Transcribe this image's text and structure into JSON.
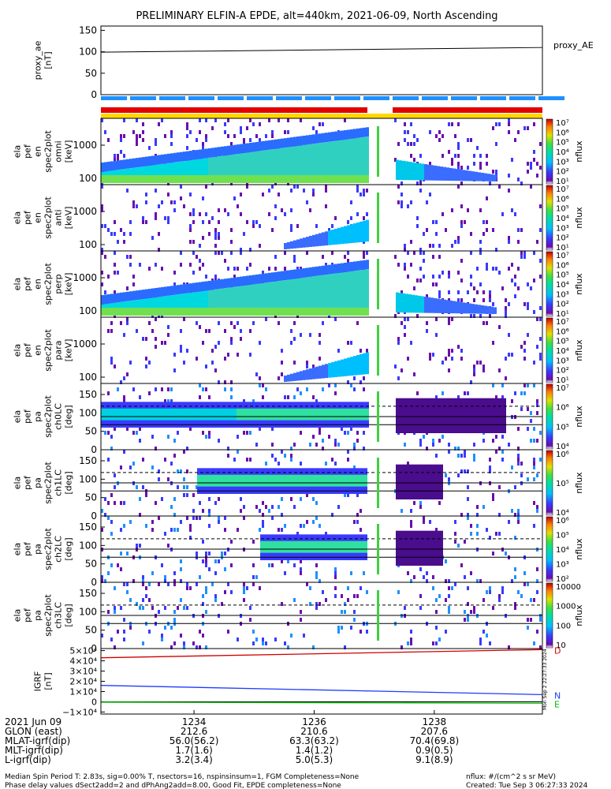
{
  "title": "PRELIMINARY ELFIN-A EPDE, alt=440km, 2021-06-09, North Ascending",
  "chart_data": [
    {
      "type": "line",
      "name": "proxy_ae",
      "ylabel": [
        "proxy_ae",
        "[nT]"
      ],
      "yticks": [
        "150",
        "100",
        "50",
        "0"
      ],
      "ylim": [
        0,
        160
      ],
      "legend": "proxy_AE",
      "x": [
        1232.45,
        1239.8
      ],
      "values": [
        99,
        110
      ]
    },
    {
      "type": "heatmap",
      "name": "pef_en_spec2plot_omni",
      "ylabel": [
        "ela",
        "pef",
        "en",
        "spec2plot",
        "omni",
        "[keV]"
      ],
      "yticks": [
        "1000",
        "100"
      ],
      "scale": "log",
      "colorbar_ticks": [
        "10⁷",
        "10⁶",
        "10⁵",
        "10⁴",
        "10³",
        "10²",
        "10¹"
      ],
      "colorbar_label": "nflux"
    },
    {
      "type": "heatmap",
      "name": "pef_en_spec2plot_anti",
      "ylabel": [
        "ela",
        "pef",
        "en",
        "spec2plot",
        "anti",
        "[keV]"
      ],
      "yticks": [
        "1000",
        "100"
      ],
      "scale": "log",
      "colorbar_ticks": [
        "10⁷",
        "10⁶",
        "10⁵",
        "10⁴",
        "10³",
        "10²",
        "10¹"
      ],
      "colorbar_label": "nflux"
    },
    {
      "type": "heatmap",
      "name": "pef_en_spec2plot_perp",
      "ylabel": [
        "ela",
        "pef",
        "en",
        "spec2plot",
        "perp",
        "[keV]"
      ],
      "yticks": [
        "1000",
        "100"
      ],
      "scale": "log",
      "colorbar_ticks": [
        "10⁷",
        "10⁶",
        "10⁵",
        "10⁴",
        "10³",
        "10²",
        "10¹"
      ],
      "colorbar_label": "nflux"
    },
    {
      "type": "heatmap",
      "name": "pef_en_spec2plot_para",
      "ylabel": [
        "ela",
        "pef",
        "en",
        "spec2plot",
        "para",
        "[keV]"
      ],
      "yticks": [
        "1000",
        "100"
      ],
      "scale": "log",
      "colorbar_ticks": [
        "10⁷",
        "10⁶",
        "10⁵",
        "10⁴",
        "10³",
        "10²",
        "10¹"
      ],
      "colorbar_label": "nflux"
    },
    {
      "type": "heatmap",
      "name": "pef_pa_spec2plot_ch0LC",
      "ylabel": [
        "ela",
        "pef",
        "pa",
        "spec2plot",
        "ch0LC",
        "[deg]"
      ],
      "yticks": [
        "150",
        "100",
        "50",
        "0"
      ],
      "ylim": [
        0,
        180
      ],
      "colorbar_ticks": [
        "10⁷",
        "10⁶",
        "10⁵",
        "10⁴"
      ],
      "colorbar_label": "nflux"
    },
    {
      "type": "heatmap",
      "name": "pef_pa_spec2plot_ch1LC",
      "ylabel": [
        "ela",
        "pef",
        "pa",
        "spec2plot",
        "ch1LC",
        "[deg]"
      ],
      "yticks": [
        "150",
        "100",
        "50",
        "0"
      ],
      "ylim": [
        0,
        180
      ],
      "colorbar_ticks": [
        "10⁶",
        "10⁵",
        "10⁴"
      ],
      "colorbar_label": "nflux"
    },
    {
      "type": "heatmap",
      "name": "pef_pa_spec2plot_ch2LC",
      "ylabel": [
        "ela",
        "pef",
        "pa",
        "spec2plot",
        "ch2LC",
        "[deg]"
      ],
      "yticks": [
        "150",
        "100",
        "50",
        "0"
      ],
      "ylim": [
        0,
        180
      ],
      "colorbar_ticks": [
        "10⁶",
        "10⁵",
        "10⁴",
        "10³",
        "10²"
      ],
      "colorbar_label": "nflux"
    },
    {
      "type": "heatmap",
      "name": "pef_pa_spec2plot_ch3LC",
      "ylabel": [
        "ela",
        "pef",
        "pa",
        "spec2plot",
        "ch3LC",
        "[deg]"
      ],
      "yticks": [
        "150",
        "100",
        "50",
        "0"
      ],
      "ylim": [
        0,
        180
      ],
      "colorbar_ticks": [
        "10000",
        "1000",
        "100",
        "10"
      ],
      "colorbar_label": "nflux"
    },
    {
      "type": "line",
      "name": "igrf",
      "ylabel": [
        "IGRF",
        "[nT]"
      ],
      "yticks": [
        "5×10⁴",
        "4×10⁴",
        "3×10⁴",
        "2×10⁴",
        "1×10⁴",
        "0",
        "−1×10⁴"
      ],
      "ylim": [
        -12000,
        52000
      ],
      "x": [
        1232.45,
        1239.8
      ],
      "series": [
        {
          "name": "D",
          "color": "#d00000",
          "values": [
            43000,
            51000
          ]
        },
        {
          "name": "N",
          "color": "#1e3cff",
          "values": [
            16000,
            7000
          ]
        },
        {
          "name": "E",
          "color": "#00c000",
          "values": [
            -400,
            -1400
          ]
        }
      ]
    }
  ],
  "xaxis": {
    "row_labels": [
      "2021 Jun 09",
      "GLON (east)",
      "MLAT-igrf(dip)",
      "MLT-igrf(dip)",
      "L-igrf(dip)"
    ],
    "ticks": [
      {
        "hhmm": "1234",
        "glon": "212.6",
        "mlat": "56.0(56.2)",
        "mlt": "1.7(1.6)",
        "l": "3.2(3.4)"
      },
      {
        "hhmm": "1236",
        "glon": "210.6",
        "mlat": "63.3(63.2)",
        "mlt": "1.4(1.2)",
        "l": "5.0(5.3)"
      },
      {
        "hhmm": "1238",
        "glon": "207.6",
        "mlat": "70.4(69.8)",
        "mlt": "0.9(0.5)",
        "l": "9.1(8.9)"
      }
    ]
  },
  "footer": {
    "line1": "Median Spin Period T: 2.83s, sig=0.00% T, nsectors=16, nspinsinsum=1, FGM Completeness=None",
    "line2": "Phase delay values dSect2add=2 and dPhAng2add=8.00, Good Fit, EPDE completeness=None",
    "units": "nflux: #/(cm^2 s sr MeV)",
    "created": "Created: Tue Sep  3 06:27:33 2024",
    "side_stamp": "Mon Sep 2 22:27:33 2024"
  },
  "colors": {
    "coverage_blue": "#1e90ff",
    "coverage_red": "#e00000",
    "coverage_yellow": "#ffd800"
  }
}
